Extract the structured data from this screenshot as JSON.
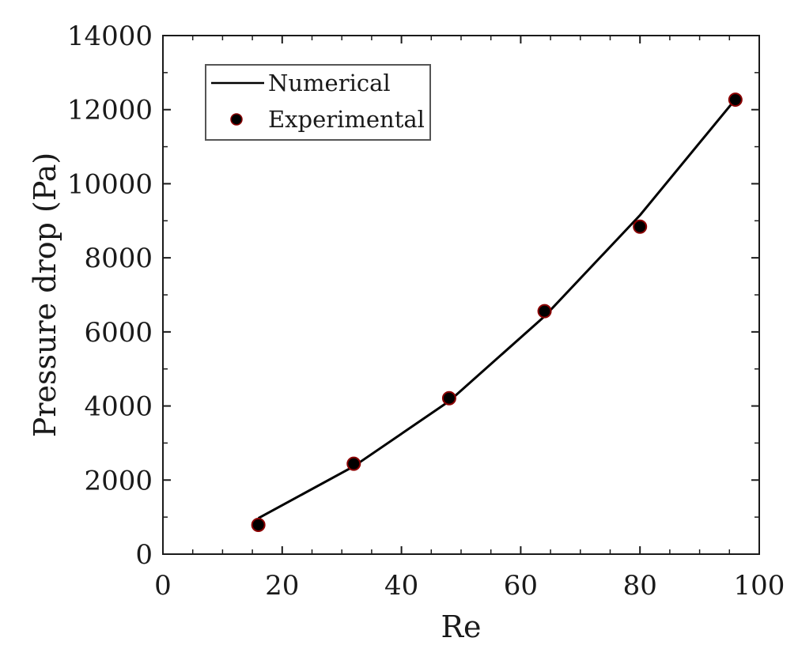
{
  "chart_data": {
    "type": "line",
    "xlabel": "Re",
    "ylabel": "Pressure drop (Pa)",
    "xlim": [
      0,
      100
    ],
    "ylim": [
      0,
      14000
    ],
    "xticks": [
      "0",
      "20",
      "40",
      "60",
      "80",
      "100"
    ],
    "yticks": [
      "0",
      "2000",
      "4000",
      "6000",
      "8000",
      "10000",
      "12000",
      "14000"
    ],
    "grid": false,
    "legend_position": "top-left",
    "series": [
      {
        "name": "Numerical",
        "style": "line",
        "color": "#000000",
        "x": [
          16,
          32,
          48,
          64,
          80,
          96
        ],
        "y": [
          970,
          2370,
          4130,
          6420,
          9150,
          12280
        ]
      },
      {
        "name": "Experimental",
        "style": "markers",
        "color": "#000000",
        "marker_edge": "#8b0000",
        "x": [
          16,
          32,
          48,
          64,
          80,
          96
        ],
        "y": [
          790,
          2440,
          4210,
          6560,
          8840,
          12270
        ]
      }
    ]
  }
}
